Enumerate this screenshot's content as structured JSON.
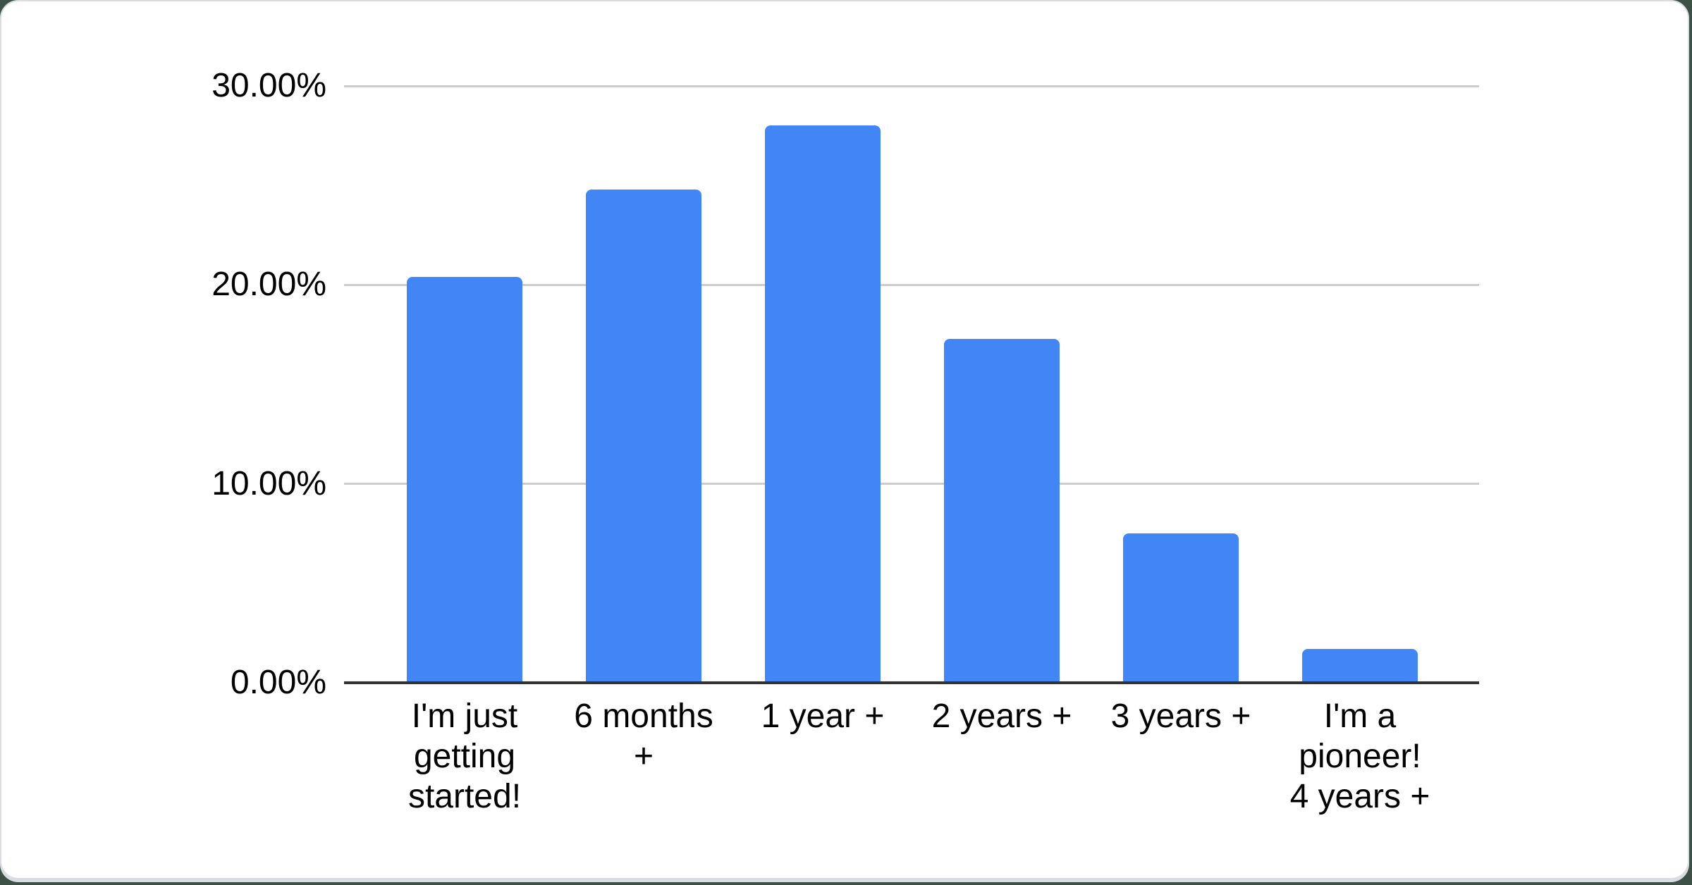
{
  "chart_data": {
    "type": "bar",
    "title": "",
    "xlabel": "",
    "ylabel": "",
    "categories": [
      "I'm just getting started!",
      "6 months +",
      "1 year +",
      "2 years +",
      "3 years +",
      "I'm a pioneer! 4 years +"
    ],
    "x_tick_labels": [
      "I'm just\ngetting\nstarted!",
      "6 months\n+",
      "1 year +",
      "2 years +",
      "3 years +",
      "I'm a\npioneer!\n4 years +"
    ],
    "values": [
      20.4,
      24.8,
      28.0,
      17.3,
      7.5,
      1.7
    ],
    "unit": "%",
    "ylim": [
      0,
      30
    ],
    "yticks": [
      "30.00%",
      "20.00%",
      "10.00%",
      "0.00%"
    ],
    "ytick_values": [
      30,
      20,
      10,
      0
    ],
    "grid": true,
    "legend": "none"
  },
  "colors": {
    "bar": "#4285f4",
    "gridline": "#cccccc",
    "axis": "#333333",
    "text": "#000000",
    "card_background": "#ffffff",
    "page_background": "#3e5147"
  }
}
